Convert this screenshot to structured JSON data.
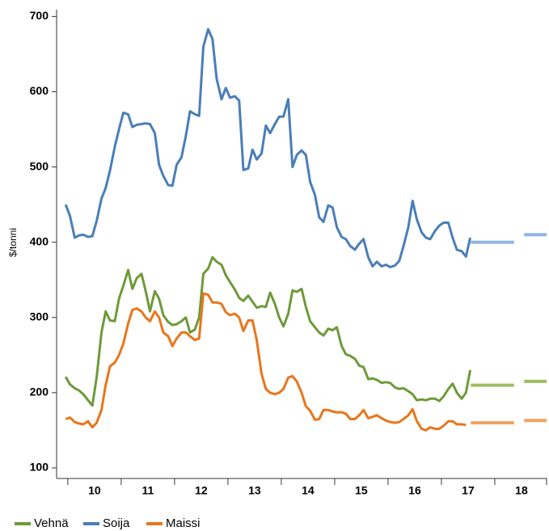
{
  "chart_data": {
    "type": "line",
    "y_label": "$/tonni",
    "xlim": [
      9.79,
      18.97
    ],
    "xticks": [
      10,
      11,
      12,
      13,
      14,
      15,
      16,
      17,
      18
    ],
    "ylim": [
      86,
      709
    ],
    "yticks": [
      100,
      200,
      300,
      400,
      500,
      600,
      700
    ],
    "grid": false,
    "legend": "bottom",
    "x": [
      9.96,
      10.04,
      10.13,
      10.21,
      10.29,
      10.38,
      10.46,
      10.54,
      10.63,
      10.71,
      10.79,
      10.88,
      10.96,
      11.04,
      11.13,
      11.21,
      11.29,
      11.38,
      11.46,
      11.54,
      11.63,
      11.71,
      11.79,
      11.88,
      11.96,
      12.04,
      12.13,
      12.21,
      12.29,
      12.38,
      12.46,
      12.54,
      12.63,
      12.71,
      12.79,
      12.88,
      12.96,
      13.04,
      13.13,
      13.21,
      13.29,
      13.38,
      13.46,
      13.54,
      13.63,
      13.71,
      13.79,
      13.88,
      13.96,
      14.04,
      14.13,
      14.21,
      14.29,
      14.38,
      14.46,
      14.54,
      14.63,
      14.71,
      14.79,
      14.88,
      14.96,
      15.04,
      15.13,
      15.21,
      15.29,
      15.38,
      15.46,
      15.54,
      15.63,
      15.71,
      15.79,
      15.88,
      15.96,
      16.04,
      16.13,
      16.21,
      16.29,
      16.38,
      16.46,
      16.54,
      16.63,
      16.71,
      16.79,
      16.88,
      16.96,
      17.04,
      17.13,
      17.21,
      17.29,
      17.38,
      17.46,
      17.54
    ],
    "series": [
      {
        "name": "Vehnä",
        "color": "#6e9a3a",
        "values": [
          221,
          211,
          206,
          203,
          198,
          190,
          183,
          220,
          280,
          308,
          296,
          295,
          325,
          342,
          363,
          338,
          352,
          358,
          335,
          308,
          335,
          325,
          303,
          294,
          290,
          291,
          295,
          300,
          280,
          284,
          300,
          358,
          365,
          380,
          374,
          370,
          356,
          347,
          337,
          326,
          322,
          329,
          321,
          313,
          315,
          314,
          333,
          318,
          300,
          288,
          305,
          336,
          334,
          338,
          314,
          295,
          287,
          280,
          276,
          285,
          283,
          287,
          262,
          251,
          249,
          245,
          236,
          234,
          218,
          219,
          217,
          213,
          214,
          213,
          207,
          205,
          206,
          202,
          198,
          190,
          191,
          190,
          192,
          192,
          189,
          195,
          205,
          212,
          200,
          192,
          200,
          230
        ],
        "forecast_color": "#9dbd62",
        "forecast_x": [
          17.55,
          18.36,
          null,
          18.55,
          18.97
        ],
        "forecast_values": [
          210,
          210,
          null,
          215,
          215
        ]
      },
      {
        "name": "Soija",
        "color": "#4a7eb8",
        "values": [
          450,
          435,
          406,
          409,
          410,
          407,
          408,
          428,
          458,
          472,
          495,
          527,
          550,
          572,
          570,
          553,
          556,
          557,
          558,
          557,
          545,
          503,
          488,
          476,
          475,
          503,
          513,
          541,
          574,
          570,
          568,
          660,
          683,
          670,
          617,
          590,
          605,
          592,
          594,
          588,
          496,
          498,
          523,
          510,
          518,
          555,
          545,
          557,
          567,
          567,
          590,
          500,
          516,
          522,
          516,
          480,
          463,
          433,
          427,
          449,
          446,
          420,
          407,
          404,
          395,
          390,
          398,
          404,
          380,
          368,
          374,
          368,
          370,
          367,
          369,
          375,
          395,
          420,
          455,
          430,
          413,
          406,
          404,
          415,
          422,
          426,
          426,
          406,
          390,
          388,
          381,
          406
        ],
        "forecast_color": "#8fb5e0",
        "forecast_x": [
          17.55,
          18.36,
          null,
          18.55,
          18.97
        ],
        "forecast_values": [
          400,
          400,
          null,
          410,
          410
        ]
      },
      {
        "name": "Maissi",
        "color": "#e8761c",
        "values": [
          165,
          167,
          161,
          159,
          158,
          162,
          154,
          160,
          177,
          210,
          235,
          240,
          250,
          265,
          292,
          310,
          312,
          308,
          300,
          295,
          308,
          300,
          280,
          275,
          262,
          272,
          280,
          280,
          275,
          270,
          272,
          332,
          330,
          320,
          320,
          318,
          307,
          303,
          305,
          300,
          282,
          296,
          296,
          270,
          225,
          205,
          200,
          198,
          200,
          205,
          220,
          222,
          215,
          200,
          182,
          176,
          164,
          165,
          177,
          177,
          175,
          174,
          174,
          172,
          165,
          165,
          170,
          177,
          166,
          168,
          170,
          166,
          163,
          161,
          160,
          161,
          165,
          170,
          178,
          162,
          152,
          150,
          154,
          152,
          152,
          156,
          162,
          162,
          158,
          158,
          157,
          null
        ],
        "forecast_color": "#f2a263",
        "forecast_x": [
          17.55,
          18.36,
          null,
          18.55,
          18.97
        ],
        "forecast_values": [
          160,
          160,
          null,
          163,
          163
        ]
      }
    ]
  }
}
